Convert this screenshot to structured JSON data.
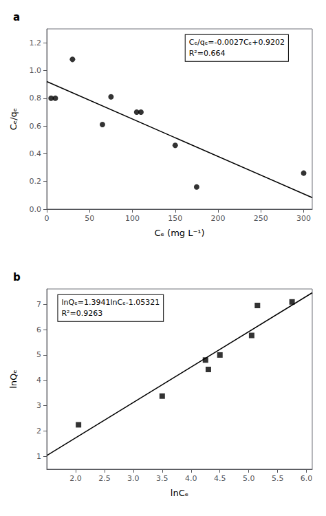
{
  "chart_data": [
    {
      "type": "scatter",
      "title": "a",
      "xlabel": "Cₑ (mg L⁻¹)",
      "ylabel": "Cₑ/qₑ",
      "annotations": [
        "Cₑ/qₑ=-0.0027Cₑ+0.9202",
        "R²=0.664"
      ],
      "series": [
        {
          "type": "scatter",
          "x": [
            5,
            10,
            30,
            65,
            75,
            105,
            110,
            150,
            175,
            300
          ],
          "values": [
            0.8,
            0.8,
            1.08,
            0.61,
            0.81,
            0.7,
            0.7,
            0.46,
            0.16,
            0.26
          ],
          "marker": "circle",
          "color": "black"
        },
        {
          "type": "line",
          "x": [
            0,
            310
          ],
          "values": [
            0.9202,
            0.0832
          ],
          "color": "black"
        }
      ],
      "xlim": [
        0,
        310
      ],
      "ylim": [
        0.0,
        1.3
      ],
      "xticks": [
        0,
        50,
        100,
        150,
        200,
        250,
        300
      ],
      "yticks": [
        {
          "value": 0.0,
          "label": "0.0"
        },
        0.2,
        0.4,
        0.6,
        0.8,
        {
          "value": 1.0,
          "label": "1.0"
        },
        1.2
      ],
      "grid": false
    },
    {
      "type": "scatter",
      "title": "b",
      "xlabel": "lnCₑ",
      "ylabel": "lnQₑ",
      "annotations": [
        "lnQₑ=1.3941lnCₑ-1.05321",
        "R²=0.9263"
      ],
      "series": [
        {
          "type": "scatter",
          "x": [
            2.05,
            3.5,
            4.25,
            4.3,
            4.5,
            5.05,
            5.15,
            5.75
          ],
          "values": [
            2.25,
            3.38,
            4.8,
            4.43,
            5.0,
            5.77,
            6.95,
            7.09
          ],
          "marker": "square",
          "color": "black"
        },
        {
          "type": "line",
          "x": [
            1.5,
            6.1
          ],
          "values": [
            1.03794,
            7.4508
          ],
          "color": "black"
        }
      ],
      "xlim": [
        1.5,
        6.1
      ],
      "ylim": [
        0.5,
        7.6
      ],
      "xticks": [
        {
          "value": 2.0,
          "label": "2.0"
        },
        2.5,
        {
          "value": 3.0,
          "label": "3.0"
        },
        3.5,
        {
          "value": 4.0,
          "label": "4.0"
        },
        4.5,
        {
          "value": 5.0,
          "label": "5.0"
        },
        5.5,
        {
          "value": 6.0,
          "label": "6.0"
        }
      ],
      "yticks": [
        1,
        2,
        3,
        4,
        5,
        6,
        7
      ],
      "grid": false
    }
  ]
}
